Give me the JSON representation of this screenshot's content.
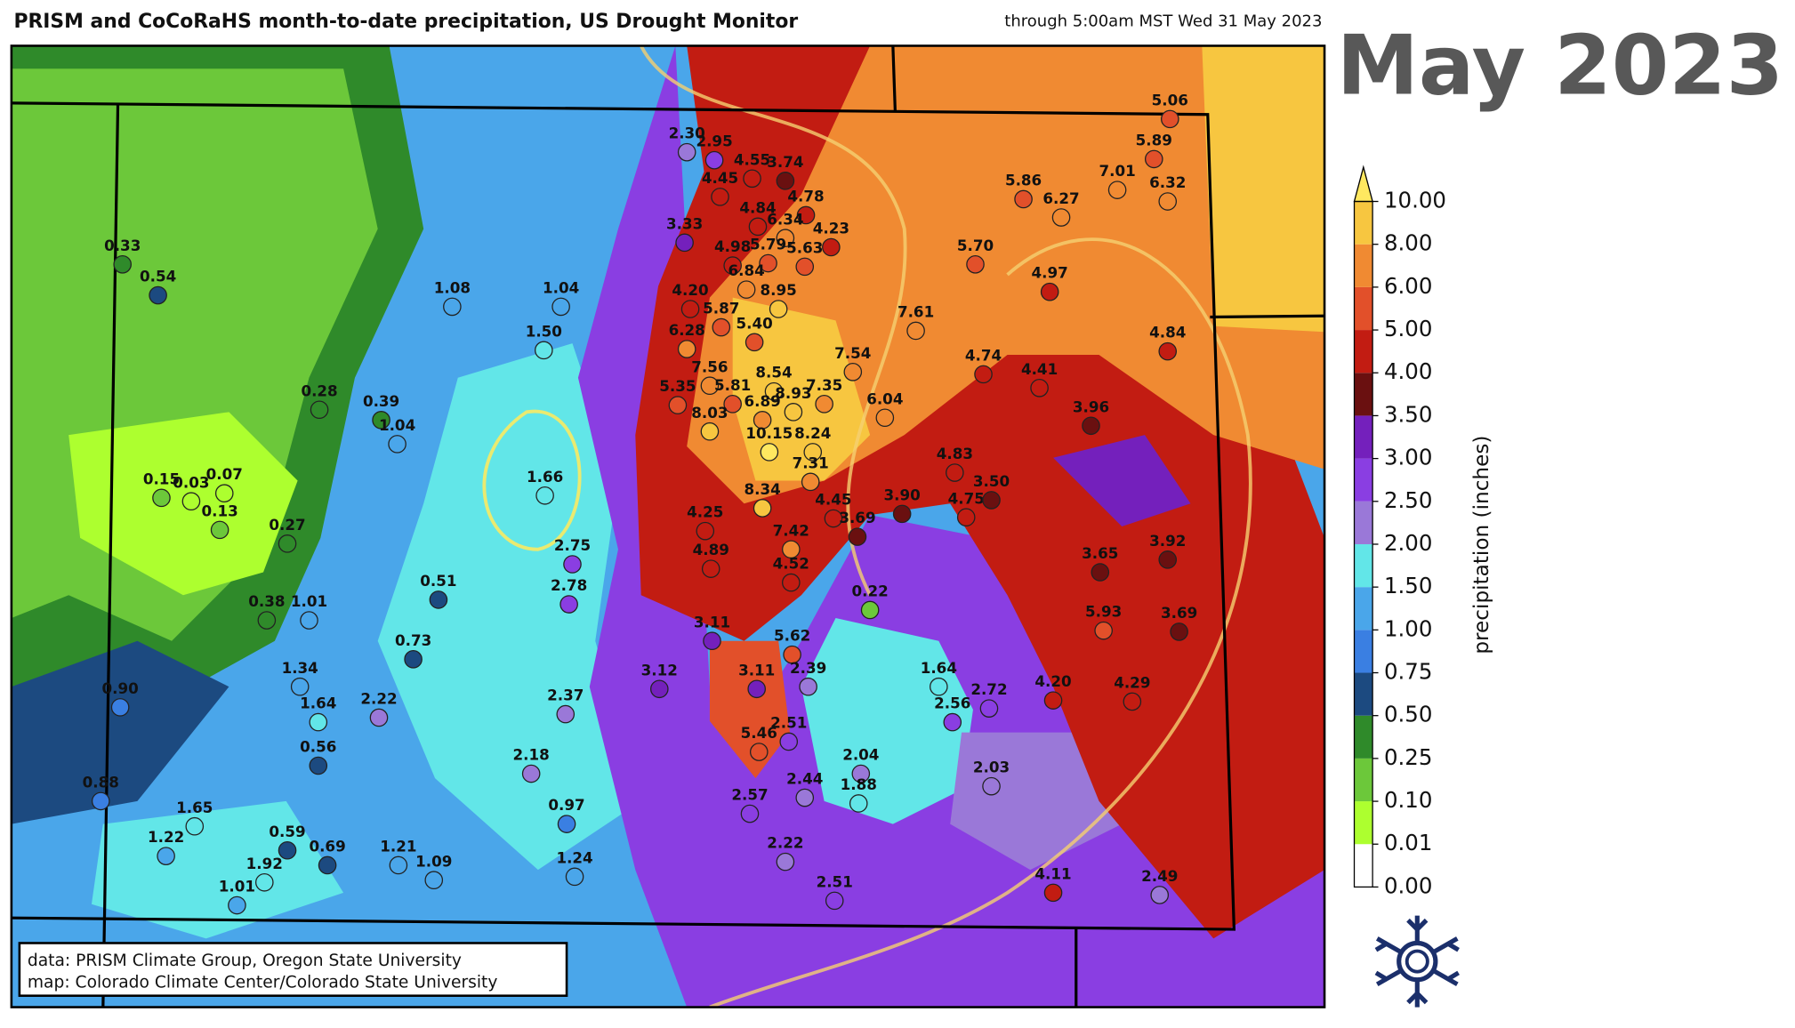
{
  "header": {
    "title": "PRISM and CoCoRaHS month-to-date precipitation, US Drought Monitor",
    "subtitle": "through 5:00am MST Wed 31 May 2023",
    "month_label": "May 2023"
  },
  "colorbar": {
    "label": "precipitation (inches)",
    "levels": [
      {
        "value": 0,
        "label": "0.00"
      },
      {
        "value": 0.01,
        "label": "0.01"
      },
      {
        "value": 0.1,
        "label": "0.10"
      },
      {
        "value": 0.25,
        "label": "0.25"
      },
      {
        "value": 0.5,
        "label": "0.50"
      },
      {
        "value": 0.75,
        "label": "0.75"
      },
      {
        "value": 1,
        "label": "1.00"
      },
      {
        "value": 1.5,
        "label": "1.50"
      },
      {
        "value": 2,
        "label": "2.00"
      },
      {
        "value": 2.5,
        "label": "2.50"
      },
      {
        "value": 3,
        "label": "3.00"
      },
      {
        "value": 3.5,
        "label": "3.50"
      },
      {
        "value": 4,
        "label": "4.00"
      },
      {
        "value": 5,
        "label": "5.00"
      },
      {
        "value": 6,
        "label": "6.00"
      },
      {
        "value": 8,
        "label": "8.00"
      },
      {
        "value": 10,
        "label": "10.00"
      }
    ],
    "colors": [
      "#ffffff",
      "#adff2f",
      "#6cc83a",
      "#2f8a2a",
      "#1c4a80",
      "#3a7fe2",
      "#4aa6ea",
      "#62e6e8",
      "#9a78d8",
      "#8a3ee2",
      "#7420bc",
      "#6a1010",
      "#c21c12",
      "#e2502a",
      "#f08a32",
      "#f7c640"
    ],
    "extend_color": "#ffe860"
  },
  "stations": [
    {
      "value": 2.3,
      "label": "2.30"
    },
    {
      "value": 2.95,
      "label": "2.95"
    },
    {
      "value": 4.55,
      "label": "4.55"
    },
    {
      "value": 3.74,
      "label": "3.74"
    },
    {
      "value": 4.45,
      "label": "4.45"
    },
    {
      "value": 4.78,
      "label": "4.78"
    },
    {
      "value": 4.84,
      "label": "4.84"
    },
    {
      "value": 6.34,
      "label": "6.34"
    },
    {
      "value": 3.33,
      "label": "3.33"
    },
    {
      "value": 4.23,
      "label": "4.23"
    },
    {
      "value": 4.98,
      "label": "4.98"
    },
    {
      "value": 5.79,
      "label": "5.79"
    },
    {
      "value": 5.63,
      "label": "5.63"
    },
    {
      "value": 6.84,
      "label": "6.84"
    },
    {
      "value": 8.95,
      "label": "8.95"
    },
    {
      "value": 4.2,
      "label": "4.20"
    },
    {
      "value": 5.87,
      "label": "5.87"
    },
    {
      "value": 5.4,
      "label": "5.40"
    },
    {
      "value": 6.28,
      "label": "6.28"
    },
    {
      "value": 7.56,
      "label": "7.56"
    },
    {
      "value": 8.54,
      "label": "8.54"
    },
    {
      "value": 7.35,
      "label": "7.35"
    },
    {
      "value": 5.35,
      "label": "5.35"
    },
    {
      "value": 5.81,
      "label": "5.81"
    },
    {
      "value": 6.89,
      "label": "6.89"
    },
    {
      "value": 8.93,
      "label": "8.93"
    },
    {
      "value": 7.54,
      "label": "7.54"
    },
    {
      "value": 6.04,
      "label": "6.04"
    },
    {
      "value": 8.03,
      "label": "8.03"
    },
    {
      "value": 10.15,
      "label": "10.15"
    },
    {
      "value": 8.24,
      "label": "8.24"
    },
    {
      "value": 7.31,
      "label": "7.31"
    },
    {
      "value": 8.34,
      "label": "8.34"
    },
    {
      "value": 4.45,
      "label": "4.45"
    },
    {
      "value": 3.9,
      "label": "3.90"
    },
    {
      "value": 4.75,
      "label": "4.75"
    },
    {
      "value": 3.5,
      "label": "3.50"
    },
    {
      "value": 4.83,
      "label": "4.83"
    },
    {
      "value": 3.69,
      "label": "3.69"
    },
    {
      "value": 7.42,
      "label": "7.42"
    },
    {
      "value": 4.25,
      "label": "4.25"
    },
    {
      "value": 4.89,
      "label": "4.89"
    },
    {
      "value": 4.52,
      "label": "4.52"
    },
    {
      "value": 0.22,
      "label": "0.22"
    },
    {
      "value": 7.61,
      "label": "7.61"
    },
    {
      "value": 5.7,
      "label": "5.70"
    },
    {
      "value": 5.86,
      "label": "5.86"
    },
    {
      "value": 6.27,
      "label": "6.27"
    },
    {
      "value": 7.01,
      "label": "7.01"
    },
    {
      "value": 5.06,
      "label": "5.06"
    },
    {
      "value": 5.89,
      "label": "5.89"
    },
    {
      "value": 6.32,
      "label": "6.32"
    },
    {
      "value": 4.97,
      "label": "4.97"
    },
    {
      "value": 4.74,
      "label": "4.74"
    },
    {
      "value": 4.41,
      "label": "4.41"
    },
    {
      "value": 4.84,
      "label": "4.84"
    },
    {
      "value": 3.96,
      "label": "3.96"
    },
    {
      "value": 3.65,
      "label": "3.65"
    },
    {
      "value": 3.92,
      "label": "3.92"
    },
    {
      "value": 5.93,
      "label": "5.93"
    },
    {
      "value": 3.69,
      "label": "3.69"
    },
    {
      "value": 4.2,
      "label": "4.20"
    },
    {
      "value": 4.29,
      "label": "4.29"
    },
    {
      "value": 1.64,
      "label": "1.64"
    },
    {
      "value": 2.72,
      "label": "2.72"
    },
    {
      "value": 2.56,
      "label": "2.56"
    },
    {
      "value": 2.03,
      "label": "2.03"
    },
    {
      "value": 4.11,
      "label": "4.11"
    },
    {
      "value": 2.49,
      "label": "2.49"
    },
    {
      "value": 3.11,
      "label": "3.11"
    },
    {
      "value": 5.62,
      "label": "5.62"
    },
    {
      "value": 3.12,
      "label": "3.12"
    },
    {
      "value": 3.11,
      "label": "3.11"
    },
    {
      "value": 2.39,
      "label": "2.39"
    },
    {
      "value": 2.51,
      "label": "2.51"
    },
    {
      "value": 5.46,
      "label": "5.46"
    },
    {
      "value": 2.04,
      "label": "2.04"
    },
    {
      "value": 1.88,
      "label": "1.88"
    },
    {
      "value": 2.57,
      "label": "2.57"
    },
    {
      "value": 2.44,
      "label": "2.44"
    },
    {
      "value": 2.22,
      "label": "2.22"
    },
    {
      "value": 2.51,
      "label": "2.51"
    },
    {
      "value": 0.33,
      "label": "0.33"
    },
    {
      "value": 0.54,
      "label": "0.54"
    },
    {
      "value": 1.08,
      "label": "1.08"
    },
    {
      "value": 1.04,
      "label": "1.04"
    },
    {
      "value": 1.5,
      "label": "1.50"
    },
    {
      "value": 0.28,
      "label": "0.28"
    },
    {
      "value": 0.39,
      "label": "0.39"
    },
    {
      "value": 1.04,
      "label": "1.04"
    },
    {
      "value": 0.15,
      "label": "0.15"
    },
    {
      "value": 0.03,
      "label": "0.03"
    },
    {
      "value": 0.07,
      "label": "0.07"
    },
    {
      "value": 0.13,
      "label": "0.13"
    },
    {
      "value": 0.27,
      "label": "0.27"
    },
    {
      "value": 1.66,
      "label": "1.66"
    },
    {
      "value": 2.75,
      "label": "2.75"
    },
    {
      "value": 2.78,
      "label": "2.78"
    },
    {
      "value": 0.51,
      "label": "0.51"
    },
    {
      "value": 0.38,
      "label": "0.38"
    },
    {
      "value": 1.01,
      "label": "1.01"
    },
    {
      "value": 0.73,
      "label": "0.73"
    },
    {
      "value": 1.34,
      "label": "1.34"
    },
    {
      "value": 1.64,
      "label": "1.64"
    },
    {
      "value": 2.22,
      "label": "2.22"
    },
    {
      "value": 2.37,
      "label": "2.37"
    },
    {
      "value": 0.9,
      "label": "0.90"
    },
    {
      "value": 0.56,
      "label": "0.56"
    },
    {
      "value": 2.18,
      "label": "2.18"
    },
    {
      "value": 0.88,
      "label": "0.88"
    },
    {
      "value": 1.65,
      "label": "1.65"
    },
    {
      "value": 1.22,
      "label": "1.22"
    },
    {
      "value": 0.59,
      "label": "0.59"
    },
    {
      "value": 0.69,
      "label": "0.69"
    },
    {
      "value": 1.21,
      "label": "1.21"
    },
    {
      "value": 1.09,
      "label": "1.09"
    },
    {
      "value": 0.97,
      "label": "0.97"
    },
    {
      "value": 1.24,
      "label": "1.24"
    },
    {
      "value": 1.92,
      "label": "1.92"
    },
    {
      "value": 1.01,
      "label": "1.01"
    }
  ],
  "credits": [
    "data: PRISM Climate Group, Oregon State University",
    "map: Colorado Climate Center/Colorado State University"
  ]
}
